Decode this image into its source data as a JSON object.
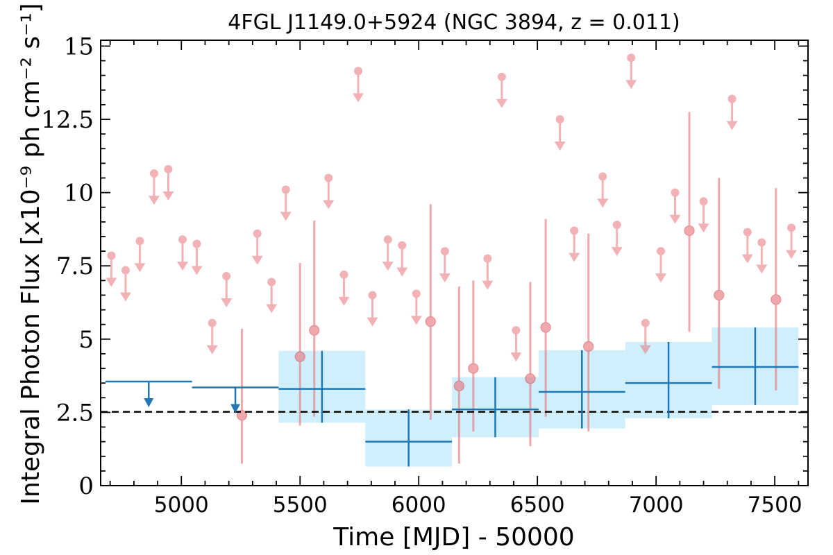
{
  "chart_data": {
    "type": "scatter",
    "title": "4FGL J1149.0+5924 (NGC 3894, z = 0.011)",
    "xlabel": "Time [MJD] - 50000",
    "ylabel": "Integral Photon Flux [x10⁻⁹ ph cm⁻² s⁻¹]",
    "xlim": [
      4660,
      7640
    ],
    "ylim": [
      0,
      15.2
    ],
    "x_ticks": [
      5000,
      5500,
      6000,
      6500,
      7000,
      7500
    ],
    "x_tick_labels": [
      "5000",
      "5500",
      "6000",
      "6500",
      "7000",
      "7500"
    ],
    "y_ticks": [
      0,
      2.5,
      5,
      7.5,
      10,
      12.5,
      15
    ],
    "y_tick_labels": [
      "0",
      "2.5",
      "5",
      "7.5",
      "10",
      "12.5",
      "15"
    ],
    "reference_line": {
      "y": 2.52,
      "style": "dashed",
      "color": "#000000"
    },
    "colors": {
      "monthly": "#e8747a",
      "yearly": "#1f77b4",
      "yearly_band": "#cdeefc"
    },
    "series": [
      {
        "binning": "monthly",
        "upper_limits": [
          {
            "x": 4705,
            "y": 7.85
          },
          {
            "x": 4765,
            "y": 7.35
          },
          {
            "x": 4825,
            "y": 8.35
          },
          {
            "x": 4885,
            "y": 10.65
          },
          {
            "x": 4945,
            "y": 10.8
          },
          {
            "x": 5005,
            "y": 8.4
          },
          {
            "x": 5065,
            "y": 8.25
          },
          {
            "x": 5130,
            "y": 5.55
          },
          {
            "x": 5190,
            "y": 7.15
          },
          {
            "x": 5320,
            "y": 8.6
          },
          {
            "x": 5380,
            "y": 6.95
          },
          {
            "x": 5440,
            "y": 10.1
          },
          {
            "x": 5620,
            "y": 10.5
          },
          {
            "x": 5685,
            "y": 7.2
          },
          {
            "x": 5745,
            "y": 14.15
          },
          {
            "x": 5805,
            "y": 6.5
          },
          {
            "x": 5870,
            "y": 8.4
          },
          {
            "x": 5930,
            "y": 8.2
          },
          {
            "x": 5990,
            "y": 6.55
          },
          {
            "x": 6110,
            "y": 8.0
          },
          {
            "x": 6290,
            "y": 7.75
          },
          {
            "x": 6350,
            "y": 13.95
          },
          {
            "x": 6410,
            "y": 5.3
          },
          {
            "x": 6595,
            "y": 12.5
          },
          {
            "x": 6655,
            "y": 8.7
          },
          {
            "x": 6775,
            "y": 10.55
          },
          {
            "x": 6835,
            "y": 8.9
          },
          {
            "x": 6895,
            "y": 14.6
          },
          {
            "x": 6955,
            "y": 5.55
          },
          {
            "x": 7020,
            "y": 8.0
          },
          {
            "x": 7080,
            "y": 10.0
          },
          {
            "x": 7200,
            "y": 9.7
          },
          {
            "x": 7320,
            "y": 13.2
          },
          {
            "x": 7385,
            "y": 8.65
          },
          {
            "x": 7445,
            "y": 8.3
          },
          {
            "x": 7570,
            "y": 8.8
          }
        ],
        "detections": [
          {
            "x": 5255,
            "y": 2.4,
            "ylo": 0.75,
            "yhi": 5.35
          },
          {
            "x": 5500,
            "y": 4.4,
            "ylo": 2.05,
            "yhi": 7.6
          },
          {
            "x": 5560,
            "y": 5.3,
            "ylo": 2.35,
            "yhi": 9.05
          },
          {
            "x": 6050,
            "y": 5.6,
            "ylo": 2.25,
            "yhi": 9.6
          },
          {
            "x": 6170,
            "y": 3.4,
            "ylo": 0.75,
            "yhi": 6.8
          },
          {
            "x": 6230,
            "y": 4.0,
            "ylo": 1.85,
            "yhi": 7.0
          },
          {
            "x": 6470,
            "y": 3.65,
            "ylo": 1.35,
            "yhi": 6.95
          },
          {
            "x": 6535,
            "y": 5.4,
            "ylo": 2.35,
            "yhi": 9.1
          },
          {
            "x": 6715,
            "y": 4.75,
            "ylo": 1.85,
            "yhi": 8.6
          },
          {
            "x": 7140,
            "y": 8.7,
            "ylo": 5.25,
            "yhi": 12.75
          },
          {
            "x": 7265,
            "y": 6.5,
            "ylo": 3.3,
            "yhi": 10.5
          },
          {
            "x": 7505,
            "y": 6.35,
            "ylo": 3.25,
            "yhi": 10.15
          }
        ]
      },
      {
        "binning": "yearly",
        "upper_limits": [
          {
            "x0": 4680,
            "x1": 5045,
            "y": 3.55
          },
          {
            "x0": 5045,
            "x1": 5410,
            "y": 3.35
          }
        ],
        "detections": [
          {
            "x0": 5410,
            "x1": 5775,
            "y": 3.3,
            "ylo": 2.15,
            "yhi": 4.6
          },
          {
            "x0": 5775,
            "x1": 6140,
            "y": 1.5,
            "ylo": 0.65,
            "yhi": 2.6
          },
          {
            "x0": 6140,
            "x1": 6505,
            "y": 2.6,
            "ylo": 1.65,
            "yhi": 3.7
          },
          {
            "x0": 6505,
            "x1": 6870,
            "y": 3.2,
            "ylo": 1.95,
            "yhi": 4.62
          },
          {
            "x0": 6870,
            "x1": 7235,
            "y": 3.5,
            "ylo": 2.3,
            "yhi": 4.9
          },
          {
            "x0": 7235,
            "x1": 7600,
            "y": 4.05,
            "ylo": 2.75,
            "yhi": 5.4
          }
        ]
      }
    ]
  }
}
